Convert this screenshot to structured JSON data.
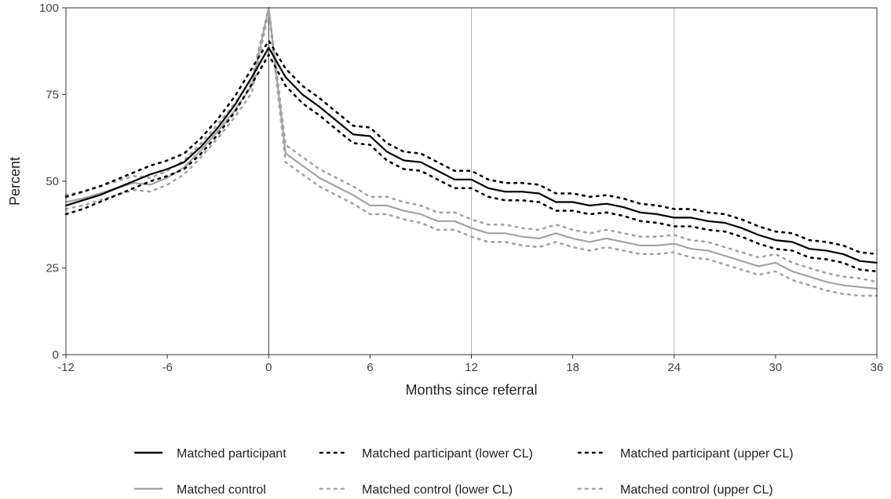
{
  "chart_data": {
    "type": "line",
    "title": "",
    "xlabel": "Months since referral",
    "ylabel": "Percent",
    "xlim": [
      -12,
      36
    ],
    "ylim": [
      0,
      100
    ],
    "x_ticks": [
      -12,
      -6,
      0,
      6,
      12,
      18,
      24,
      30,
      36
    ],
    "x_tick_labels": [
      "-12",
      "-6",
      "0",
      "6",
      "12",
      "18",
      "24",
      "30",
      "36"
    ],
    "y_ticks": [
      0,
      25,
      50,
      75,
      100
    ],
    "y_tick_labels": [
      "0",
      "25",
      "50",
      "75",
      "100"
    ],
    "grid": false,
    "reference_lines_x": [
      0,
      12,
      24
    ],
    "legend_position": "bottom",
    "x": [
      -12,
      -11,
      -10,
      -9,
      -8,
      -7,
      -6,
      -5,
      -4,
      -3,
      -2,
      -1,
      0,
      1,
      2,
      3,
      4,
      5,
      6,
      7,
      8,
      9,
      10,
      11,
      12,
      13,
      14,
      15,
      16,
      17,
      18,
      19,
      20,
      21,
      22,
      23,
      24,
      25,
      26,
      27,
      28,
      29,
      30,
      31,
      32,
      33,
      34,
      35,
      36
    ],
    "series": [
      {
        "name": "Matched participant",
        "color": "#000000",
        "style": "solid",
        "values": [
          43,
          44.5,
          46,
          48,
          50,
          52,
          53.5,
          55.5,
          60,
          65.5,
          72,
          80,
          88.5,
          80,
          75,
          71.5,
          67.5,
          63.5,
          63,
          58.5,
          56,
          55.5,
          53,
          50.5,
          50.5,
          48,
          47,
          47,
          46.5,
          44,
          44,
          43,
          43.5,
          42.5,
          41,
          40.5,
          39.5,
          39.5,
          38.5,
          38,
          36.5,
          34.5,
          33,
          32.5,
          30.5,
          30,
          29,
          27,
          26.5
        ]
      },
      {
        "name": "Matched participant (lower CL)",
        "color": "#000000",
        "style": "dotted",
        "values": [
          40.5,
          42,
          44,
          46,
          48,
          50,
          51.5,
          53.5,
          58,
          63.5,
          70,
          78,
          86.5,
          77.5,
          72.5,
          69,
          65,
          61,
          60.5,
          56,
          53.5,
          53,
          50.5,
          48,
          48,
          45.5,
          44.5,
          44.5,
          44,
          41.5,
          41.5,
          40.5,
          41,
          40,
          38.5,
          38,
          37,
          37,
          36,
          35.5,
          34,
          32,
          30.5,
          30,
          28,
          27.5,
          26.5,
          24.5,
          24
        ]
      },
      {
        "name": "Matched participant (upper CL)",
        "color": "#000000",
        "style": "dotted",
        "values": [
          45.5,
          47,
          48.5,
          50.5,
          52.5,
          54.5,
          56,
          58,
          62.5,
          68,
          74.5,
          82.5,
          90.5,
          82.5,
          77.5,
          74,
          70,
          66,
          65.5,
          61,
          58.5,
          58,
          55.5,
          53,
          53,
          50.5,
          49.5,
          49.5,
          49,
          46.5,
          46.5,
          45.5,
          46,
          45,
          43.5,
          43,
          42,
          42,
          41,
          40.5,
          39,
          37,
          35.5,
          35,
          33,
          32.5,
          31.5,
          29.5,
          29
        ]
      },
      {
        "name": "Matched control",
        "color": "#a3a3a3",
        "style": "solid",
        "values": [
          44,
          45,
          46.5,
          48,
          49.5,
          49,
          51,
          54,
          59,
          64.5,
          70.5,
          77.5,
          100,
          58,
          54.5,
          51,
          48.5,
          46,
          43,
          43,
          41.5,
          40.5,
          38.5,
          38.5,
          36.5,
          35,
          35,
          34,
          33.5,
          35,
          33.5,
          32.5,
          33.5,
          32.5,
          31.5,
          31.5,
          32,
          30.5,
          30,
          28.5,
          27,
          25.5,
          26.5,
          24,
          22.5,
          21,
          20,
          19.5,
          19
        ]
      },
      {
        "name": "Matched control (lower CL)",
        "color": "#a3a3a3",
        "style": "dotted",
        "values": [
          42,
          43,
          44.5,
          46,
          47.5,
          47,
          49,
          52,
          57,
          62.5,
          68.5,
          75.5,
          99,
          55.5,
          52,
          48.5,
          46,
          43.5,
          40.5,
          40.5,
          39,
          38,
          36,
          36,
          34,
          32.5,
          32.5,
          31.5,
          31,
          32.5,
          31,
          30,
          31,
          30,
          29,
          29,
          29.5,
          28,
          27.5,
          26,
          24.5,
          23,
          24,
          21.5,
          20,
          18.5,
          17.5,
          17,
          17
        ]
      },
      {
        "name": "Matched control (upper CL)",
        "color": "#a3a3a3",
        "style": "dotted",
        "values": [
          46,
          47,
          48.5,
          50,
          51.5,
          51,
          53,
          56,
          61,
          66.5,
          72.5,
          79.5,
          100,
          60.5,
          57,
          53.5,
          51,
          48.5,
          45.5,
          45.5,
          44,
          43,
          41,
          41,
          39,
          37.5,
          37.5,
          36.5,
          36,
          37.5,
          36,
          35,
          36,
          35,
          34,
          34,
          34.5,
          33,
          32.5,
          31,
          29.5,
          28,
          29,
          26.5,
          25,
          23.5,
          22.5,
          22,
          21
        ]
      }
    ]
  }
}
